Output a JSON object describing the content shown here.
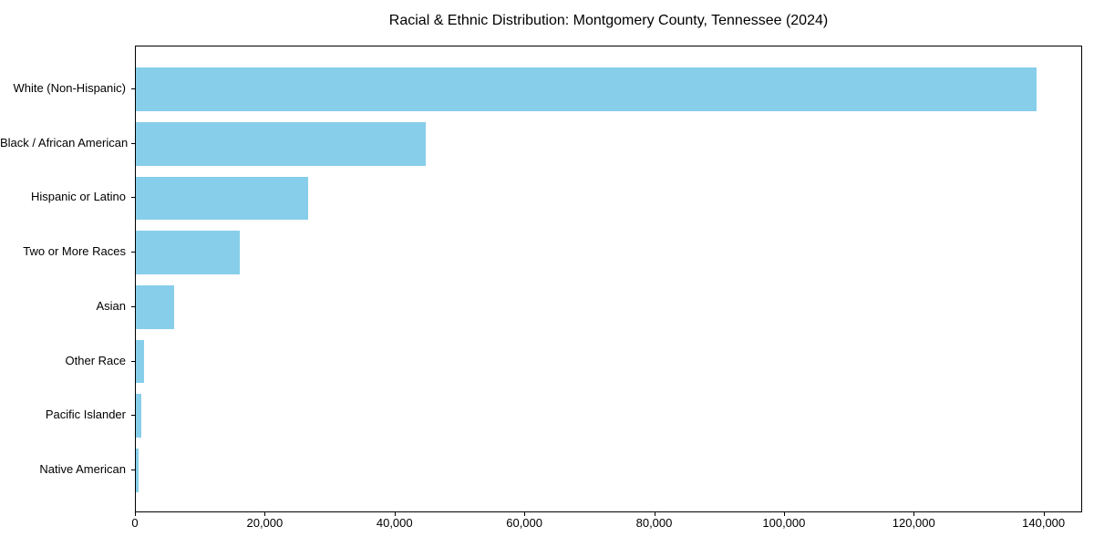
{
  "chart_data": {
    "type": "bar",
    "orientation": "horizontal",
    "title": "Racial & Ethnic Distribution: Montgomery County, Tennessee (2024)",
    "categories": [
      "White (Non-Hispanic)",
      "Black / African American",
      "Hispanic or Latino",
      "Two or More Races",
      "Asian",
      "Other Race",
      "Pacific Islander",
      "Native American"
    ],
    "values": [
      139000,
      44800,
      26600,
      16000,
      5900,
      1200,
      800,
      400
    ],
    "xlabel": "",
    "ylabel": "",
    "xlim": [
      0,
      145950
    ],
    "xticks": [
      0,
      20000,
      40000,
      60000,
      80000,
      100000,
      120000,
      140000
    ],
    "xtick_labels": [
      "0",
      "20,000",
      "40,000",
      "60,000",
      "80,000",
      "100,000",
      "120,000",
      "140,000"
    ],
    "bar_color": "#87CEEB",
    "axis_color": "#000000",
    "background_color": "#FFFFFF",
    "grid": false,
    "legend": null
  }
}
